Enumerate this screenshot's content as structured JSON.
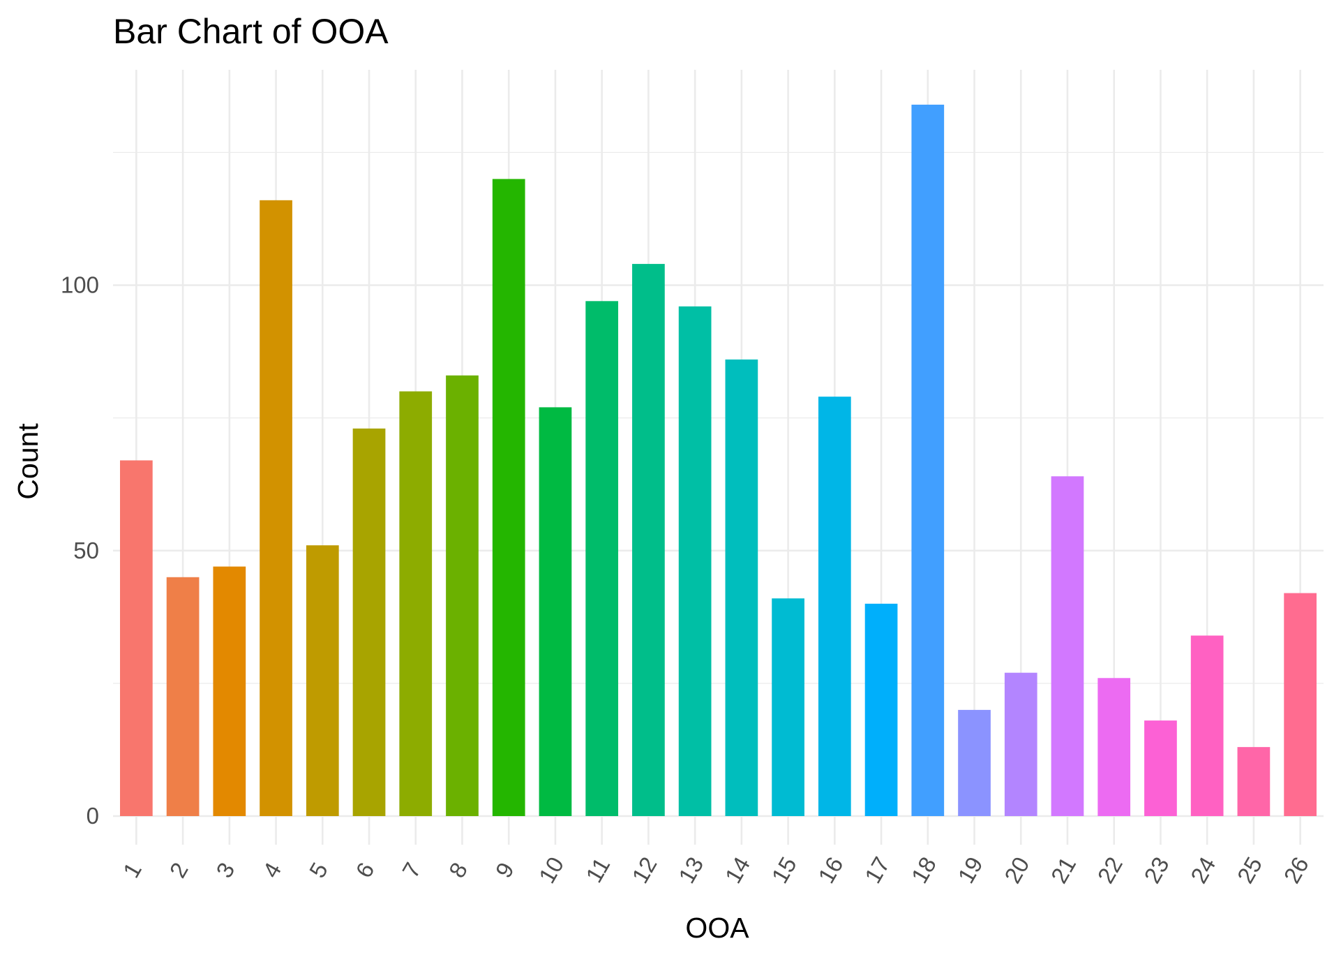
{
  "chart_data": {
    "type": "bar",
    "title": "Bar Chart of  OOA",
    "xlabel": "OOA",
    "ylabel": "Count",
    "categories": [
      "1",
      "2",
      "3",
      "4",
      "5",
      "6",
      "7",
      "8",
      "9",
      "10",
      "11",
      "12",
      "13",
      "14",
      "15",
      "16",
      "17",
      "18",
      "19",
      "20",
      "21",
      "22",
      "23",
      "24",
      "25",
      "26"
    ],
    "values": [
      67,
      45,
      47,
      116,
      51,
      73,
      80,
      83,
      120,
      77,
      97,
      104,
      96,
      86,
      41,
      79,
      40,
      134,
      20,
      27,
      64,
      26,
      18,
      34,
      13,
      42
    ],
    "colors": [
      "#F8766D",
      "#EF7F48",
      "#E38900",
      "#D29200",
      "#BF9B00",
      "#A8A400",
      "#8DAC00",
      "#6BB100",
      "#24B600",
      "#00BA42",
      "#00BC6A",
      "#00BE8A",
      "#00BFA5",
      "#00BEBD",
      "#00BBD2",
      "#00B6E7",
      "#00AFFB",
      "#419FFF",
      "#8B93FF",
      "#B385FF",
      "#D278FF",
      "#EC6BF2",
      "#FC61D5",
      "#FF61C2",
      "#FF66A8",
      "#FF6C90"
    ],
    "ylim": [
      0,
      138
    ],
    "y_ticks": [
      0,
      50,
      100
    ],
    "grid": true,
    "legend": "none"
  }
}
